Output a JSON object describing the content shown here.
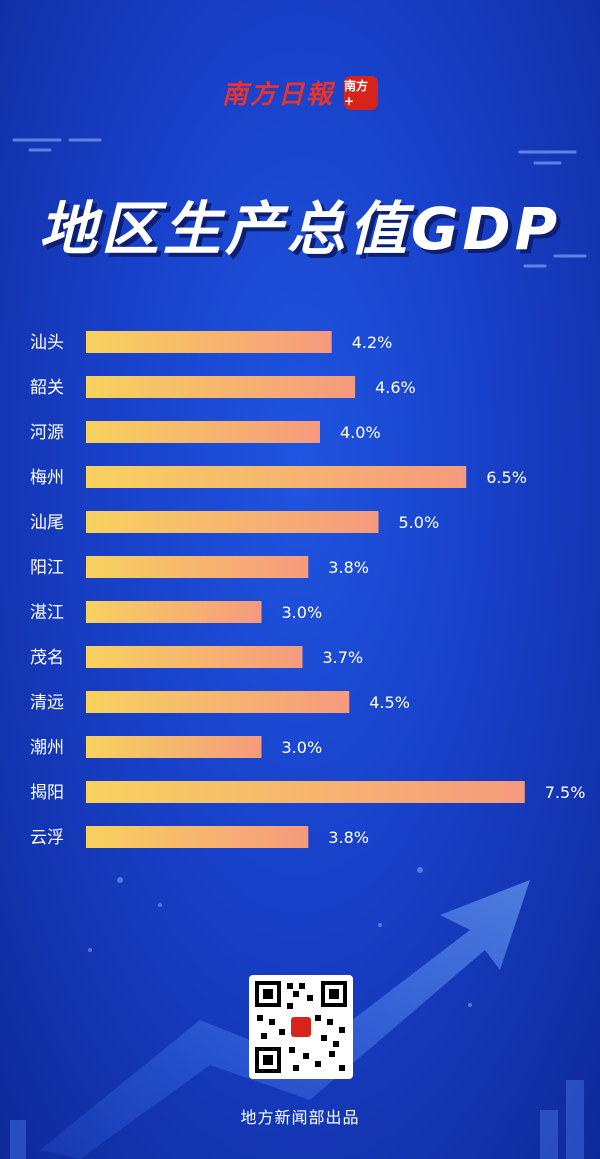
{
  "masthead": {
    "paper_name": "南方日報",
    "logo_label": "南方+"
  },
  "page_title": "地区生产总值GDP",
  "footer": {
    "credit": "地方新闻部出品"
  },
  "colors": {
    "bar_start": "#f7d25e",
    "bar_end": "#f59a7e",
    "background": "#1a47d4",
    "label_text": "#ffffff"
  },
  "chart_data": {
    "type": "bar",
    "orientation": "horizontal",
    "categories": [
      "汕头",
      "韶关",
      "河源",
      "梅州",
      "汕尾",
      "阳江",
      "湛江",
      "茂名",
      "清远",
      "潮州",
      "揭阳",
      "云浮"
    ],
    "values": [
      4.2,
      4.6,
      4.0,
      6.5,
      5.0,
      3.8,
      3.0,
      3.7,
      4.5,
      3.0,
      7.5,
      3.8
    ],
    "value_labels": [
      "4.2%",
      "4.6%",
      "4.0%",
      "6.5%",
      "5.0%",
      "3.8%",
      "3.0%",
      "3.7%",
      "4.5%",
      "3.0%",
      "7.5%",
      "3.8%"
    ],
    "title": "地区生产总值GDP",
    "xlabel": "",
    "ylabel": "",
    "grid": false,
    "legend": "none"
  }
}
